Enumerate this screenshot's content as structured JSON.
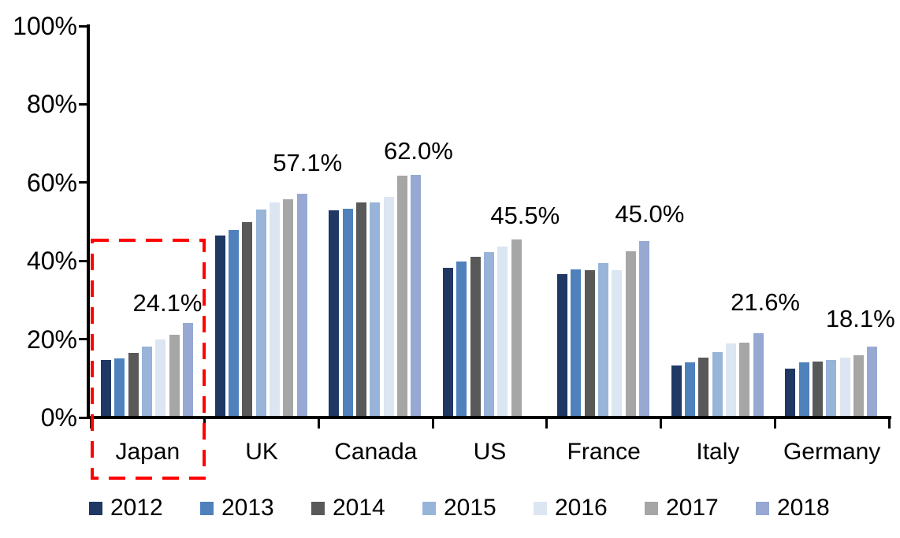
{
  "chart_data": {
    "type": "bar",
    "title": "",
    "xlabel": "",
    "ylabel": "",
    "ylim": [
      0,
      100
    ],
    "grid": false,
    "legend_position": "bottom",
    "categories": [
      "Japan",
      "UK",
      "Canada",
      "US",
      "France",
      "Italy",
      "Germany"
    ],
    "series": [
      {
        "name": "2012",
        "color": "#1F3864",
        "values": [
          14.7,
          46.4,
          53.0,
          38.2,
          36.6,
          13.3,
          12.5
        ]
      },
      {
        "name": "2013",
        "color": "#4F81BD",
        "values": [
          15.0,
          47.9,
          53.4,
          39.9,
          37.8,
          14.1,
          14.0
        ]
      },
      {
        "name": "2014",
        "color": "#595959",
        "values": [
          16.5,
          50.0,
          55.0,
          41.0,
          37.7,
          15.2,
          14.3
        ]
      },
      {
        "name": "2015",
        "color": "#98B4D9",
        "values": [
          18.1,
          53.2,
          54.9,
          42.3,
          39.5,
          16.8,
          14.7
        ]
      },
      {
        "name": "2016",
        "color": "#DCE6F2",
        "values": [
          20.0,
          54.9,
          56.3,
          43.6,
          37.6,
          18.9,
          15.2
        ]
      },
      {
        "name": "2017",
        "color": "#A6A6A6",
        "values": [
          21.1,
          55.8,
          61.7,
          45.5,
          42.4,
          19.1,
          15.9
        ]
      },
      {
        "name": "2018",
        "color": "#97A8D3",
        "values": [
          24.1,
          57.1,
          62.0,
          null,
          45.0,
          21.6,
          18.1
        ]
      }
    ],
    "value_labels": [
      {
        "category": "Japan",
        "text": "24.1%"
      },
      {
        "category": "UK",
        "text": "57.1%"
      },
      {
        "category": "Canada",
        "text": "62.0%"
      },
      {
        "category": "US",
        "text": "45.5%"
      },
      {
        "category": "France",
        "text": "45.0%"
      },
      {
        "category": "Italy",
        "text": "21.6%"
      },
      {
        "category": "Germany",
        "text": "18.1%"
      }
    ],
    "yticks": [
      {
        "value": 0,
        "label": "0%"
      },
      {
        "value": 20,
        "label": "20%"
      },
      {
        "value": 40,
        "label": "40%"
      },
      {
        "value": 60,
        "label": "60%"
      },
      {
        "value": 80,
        "label": "80%"
      },
      {
        "value": 100,
        "label": "100%"
      }
    ],
    "annotation": {
      "type": "dashed-box",
      "highlight_category": "Japan",
      "color": "#FF0000"
    }
  }
}
